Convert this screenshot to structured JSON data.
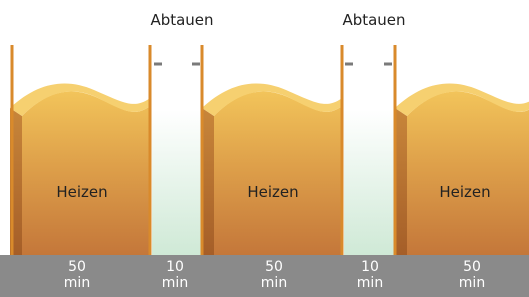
{
  "defrost_labels": [
    "Abtauen",
    "Abtauen"
  ],
  "phases": [
    {
      "label": "Heizen",
      "duration": "50",
      "unit": "min"
    },
    {
      "duration": "10",
      "unit": "min"
    },
    {
      "label": "Heizen",
      "duration": "50",
      "unit": "min"
    },
    {
      "duration": "10",
      "unit": "min"
    },
    {
      "label": "Heizen",
      "duration": "50",
      "unit": "min"
    }
  ]
}
